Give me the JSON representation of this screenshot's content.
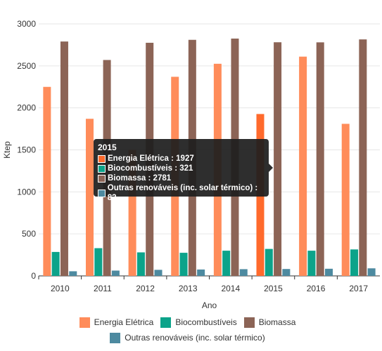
{
  "chart_data": {
    "type": "bar",
    "xlabel": "Ano",
    "ylabel": "Ktep",
    "ylim": [
      0,
      3000
    ],
    "yticks": [
      0,
      500,
      1000,
      1500,
      2000,
      2500,
      3000
    ],
    "grid": true,
    "legend_position": "bottom",
    "categories": [
      "2010",
      "2011",
      "2012",
      "2013",
      "2014",
      "2015",
      "2016",
      "2017"
    ],
    "series": [
      {
        "name": "Energia Elétrica",
        "color": "#ff8c5a",
        "values": [
          2250,
          1870,
          1500,
          2370,
          2525,
          1927,
          2610,
          1810
        ]
      },
      {
        "name": "Biocombustíveis",
        "color": "#0ca38a",
        "values": [
          285,
          330,
          280,
          275,
          300,
          321,
          300,
          315
        ]
      },
      {
        "name": "Biomassa",
        "color": "#8c6456",
        "values": [
          2790,
          2570,
          2775,
          2810,
          2825,
          2781,
          2780,
          2815
        ]
      },
      {
        "name": "Outras renováveis (inc. solar térmico)",
        "color": "#4d8aa0",
        "values": [
          55,
          63,
          72,
          76,
          80,
          82,
          85,
          90
        ]
      }
    ],
    "highlighted_category": "2015",
    "highlighted_color": "#ff6a2c"
  },
  "tooltip": {
    "title": "2015",
    "rows": [
      {
        "text": "Energia Elétrica : 1927",
        "color": "#ff6a2c"
      },
      {
        "text": "Biocombustíveis : 321",
        "color": "#0ca38a"
      },
      {
        "text": "Biomassa : 2781",
        "color": "#8c6456"
      },
      {
        "text": "Outras renováveis (inc. solar térmico) : 82",
        "color": "#4d8aa0"
      }
    ]
  }
}
